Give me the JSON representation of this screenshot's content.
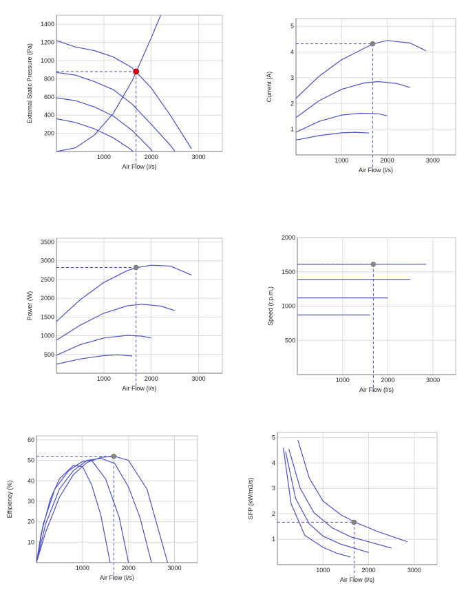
{
  "colors": {
    "curve": "#4a4fc9",
    "guide": "#4a4fc9",
    "grid": "#dcdcdc",
    "operating_point_pressure": "#e60012",
    "operating_point": "#888888"
  },
  "chart_data": [
    {
      "id": "pressure",
      "type": "line",
      "xlabel": "Air Flow (l/s)",
      "ylabel": "External Static Pressure (Pa)",
      "xlim": [
        0,
        3500
      ],
      "ylim": [
        0,
        1500
      ],
      "xticks": [
        1000,
        2000,
        3000
      ],
      "yticks": [
        200,
        400,
        600,
        800,
        1000,
        1200,
        1400
      ],
      "grid": true,
      "series": [
        {
          "x": [
            0,
            400,
            800,
            1200,
            1600,
            2000,
            2400,
            2850
          ],
          "y": [
            1220,
            1150,
            1110,
            1040,
            920,
            700,
            400,
            30
          ]
        },
        {
          "x": [
            0,
            400,
            800,
            1200,
            1600,
            2000,
            2400,
            2500
          ],
          "y": [
            870,
            840,
            770,
            680,
            520,
            300,
            70,
            0
          ]
        },
        {
          "x": [
            0,
            400,
            800,
            1200,
            1600,
            2000,
            2020
          ],
          "y": [
            590,
            560,
            490,
            390,
            230,
            20,
            0
          ]
        },
        {
          "x": [
            0,
            400,
            800,
            1200,
            1550,
            1620
          ],
          "y": [
            360,
            320,
            250,
            150,
            30,
            0
          ]
        },
        {
          "x": [
            0,
            400,
            800,
            1200,
            1600,
            2000,
            2200
          ],
          "y": [
            0,
            40,
            180,
            420,
            780,
            1250,
            1500
          ]
        }
      ],
      "point": {
        "x": 1680,
        "y": 880,
        "color": "#e60012"
      }
    },
    {
      "id": "current",
      "type": "line",
      "xlabel": "Air Flow (l/s)",
      "ylabel": "Current (A)",
      "xlim": [
        0,
        3500
      ],
      "ylim": [
        0,
        5.3
      ],
      "xticks": [
        1000,
        2000,
        3000
      ],
      "yticks": [
        1,
        2,
        3,
        4,
        5
      ],
      "grid": true,
      "series": [
        {
          "x": [
            0,
            500,
            1000,
            1500,
            1700,
            2000,
            2500,
            2850
          ],
          "y": [
            2.2,
            3.05,
            3.7,
            4.15,
            4.32,
            4.45,
            4.35,
            4.05
          ]
        },
        {
          "x": [
            0,
            500,
            1000,
            1500,
            1800,
            2200,
            2500
          ],
          "y": [
            1.45,
            2.1,
            2.55,
            2.8,
            2.85,
            2.78,
            2.62
          ]
        },
        {
          "x": [
            0,
            500,
            1000,
            1400,
            1800,
            2000
          ],
          "y": [
            0.88,
            1.3,
            1.55,
            1.62,
            1.6,
            1.52
          ]
        },
        {
          "x": [
            0,
            500,
            1000,
            1300,
            1600
          ],
          "y": [
            0.58,
            0.75,
            0.86,
            0.88,
            0.85
          ]
        }
      ],
      "point": {
        "x": 1680,
        "y": 4.32,
        "color": "#888888"
      }
    },
    {
      "id": "power",
      "type": "line",
      "xlabel": "Air Flow (l/s)",
      "ylabel": "Power (W)",
      "xlim": [
        0,
        3500
      ],
      "ylim": [
        0,
        3600
      ],
      "xticks": [
        1000,
        2000,
        3000
      ],
      "yticks": [
        500,
        1000,
        1500,
        2000,
        2500,
        3000,
        3500
      ],
      "grid": true,
      "series": [
        {
          "x": [
            0,
            500,
            1000,
            1500,
            1700,
            2000,
            2400,
            2850
          ],
          "y": [
            1380,
            1960,
            2420,
            2740,
            2820,
            2880,
            2860,
            2620
          ]
        },
        {
          "x": [
            0,
            500,
            1000,
            1500,
            1800,
            2200,
            2500
          ],
          "y": [
            880,
            1280,
            1600,
            1800,
            1840,
            1790,
            1670
          ]
        },
        {
          "x": [
            0,
            500,
            1000,
            1500,
            1800,
            2000
          ],
          "y": [
            480,
            760,
            940,
            1010,
            990,
            940
          ]
        },
        {
          "x": [
            0,
            500,
            1000,
            1300,
            1600
          ],
          "y": [
            240,
            380,
            470,
            490,
            460
          ]
        }
      ],
      "point": {
        "x": 1680,
        "y": 2820,
        "color": "#888888"
      }
    },
    {
      "id": "speed",
      "type": "line",
      "xlabel": "Air Flow (l/s)",
      "ylabel": "Speed (r.p.m.)",
      "xlim": [
        0,
        3500
      ],
      "ylim": [
        0,
        2000
      ],
      "xticks": [
        1000,
        2000,
        3000
      ],
      "yticks": [
        500,
        1000,
        1500,
        2000
      ],
      "grid": true,
      "series": [
        {
          "x": [
            0,
            2850
          ],
          "y": [
            1610,
            1610
          ]
        },
        {
          "x": [
            0,
            2500
          ],
          "y": [
            1390,
            1390
          ]
        },
        {
          "x": [
            0,
            2000
          ],
          "y": [
            1120,
            1120
          ]
        },
        {
          "x": [
            0,
            1600
          ],
          "y": [
            870,
            870
          ]
        }
      ],
      "point": {
        "x": 1680,
        "y": 1610,
        "color": "#888888"
      }
    },
    {
      "id": "efficiency",
      "type": "line",
      "xlabel": "Air Flow (l/s)",
      "ylabel": "Efficiency (%)",
      "xlim": [
        0,
        3500
      ],
      "ylim": [
        0,
        62
      ],
      "xticks": [
        1000,
        2000,
        3000
      ],
      "yticks": [
        10,
        20,
        30,
        40,
        50,
        60
      ],
      "grid": true,
      "series": [
        {
          "x": [
            0,
            200,
            500,
            800,
            1100,
            1400,
            1600,
            1700,
            2000,
            2400,
            2850
          ],
          "y": [
            0,
            15,
            32,
            43,
            49,
            51.5,
            51.8,
            52,
            50,
            36,
            0
          ]
        },
        {
          "x": [
            0,
            200,
            500,
            800,
            1100,
            1400,
            1700,
            2000,
            2250,
            2500
          ],
          "y": [
            0,
            19,
            36,
            45,
            50,
            51,
            48.5,
            37,
            22,
            0
          ]
        },
        {
          "x": [
            0,
            150,
            400,
            700,
            1000,
            1200,
            1500,
            1800,
            2000
          ],
          "y": [
            0,
            19,
            36,
            45,
            49.5,
            50,
            41,
            22,
            0
          ]
        },
        {
          "x": [
            0,
            100,
            300,
            500,
            800,
            1000,
            1200,
            1400,
            1600
          ],
          "y": [
            0,
            14,
            31,
            41,
            47.5,
            47,
            38,
            23,
            0
          ]
        }
      ],
      "point": {
        "x": 1680,
        "y": 52,
        "color": "#888888"
      }
    },
    {
      "id": "sfp",
      "type": "line",
      "xlabel": "Air Flow (l/s)",
      "ylabel": "SFP (kW/m3/s)",
      "xlim": [
        0,
        3500
      ],
      "ylim": [
        0,
        5.2
      ],
      "xticks": [
        1000,
        2000,
        3000
      ],
      "yticks": [
        1,
        2,
        3,
        4,
        5
      ],
      "grid": true,
      "series": [
        {
          "x": [
            450,
            700,
            1000,
            1400,
            1700,
            2200,
            2850
          ],
          "y": [
            4.9,
            3.4,
            2.5,
            1.95,
            1.67,
            1.3,
            0.9
          ]
        },
        {
          "x": [
            250,
            500,
            800,
            1200,
            1600,
            2000,
            2500
          ],
          "y": [
            4.55,
            3.0,
            2.05,
            1.45,
            1.1,
            0.9,
            0.65
          ]
        },
        {
          "x": [
            180,
            400,
            700,
            1000,
            1400,
            2000
          ],
          "y": [
            4.45,
            2.6,
            1.6,
            1.12,
            0.8,
            0.48
          ]
        },
        {
          "x": [
            130,
            300,
            600,
            1000,
            1300,
            1600
          ],
          "y": [
            4.6,
            2.4,
            1.15,
            0.68,
            0.45,
            0.3
          ]
        }
      ],
      "point": {
        "x": 1680,
        "y": 1.67,
        "color": "#888888"
      }
    }
  ]
}
